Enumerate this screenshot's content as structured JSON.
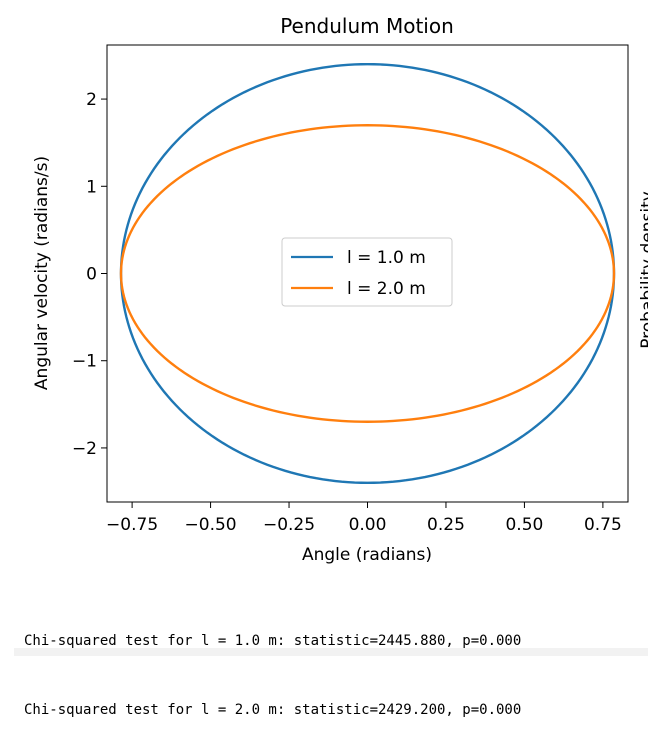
{
  "chart_data": {
    "type": "line",
    "title": "Pendulum Motion",
    "xlabel": "Angle (radians)",
    "ylabel": "Angular velocity (radians/s)",
    "xlim": [
      -0.83,
      0.83
    ],
    "ylim": [
      -2.62,
      2.62
    ],
    "xticks": [
      -0.75,
      -0.5,
      -0.25,
      0.0,
      0.25,
      0.5,
      0.75
    ],
    "xtick_labels": [
      "−0.75",
      "−0.50",
      "−0.25",
      "0.00",
      "0.25",
      "0.50",
      "0.75"
    ],
    "yticks": [
      -2,
      -1,
      0,
      1,
      2
    ],
    "ytick_labels": [
      "−2",
      "−1",
      "0",
      "1",
      "2"
    ],
    "grid": false,
    "legend_position": "center",
    "series": [
      {
        "name": "l = 1.0 m",
        "color": "#1f77b4",
        "amplitude_angle": 0.7854,
        "amplitude_velocity": 2.4
      },
      {
        "name": "l = 2.0 m",
        "color": "#ff7f0e",
        "amplitude_angle": 0.7854,
        "amplitude_velocity": 1.7
      }
    ],
    "neighbor_ylabel_fragment": "Probability density"
  },
  "output_lines": [
    "Chi-squared test for l = 1.0 m: statistic=2445.880, p=0.000",
    "Chi-squared test for l = 2.0 m: statistic=2429.200, p=0.000"
  ]
}
